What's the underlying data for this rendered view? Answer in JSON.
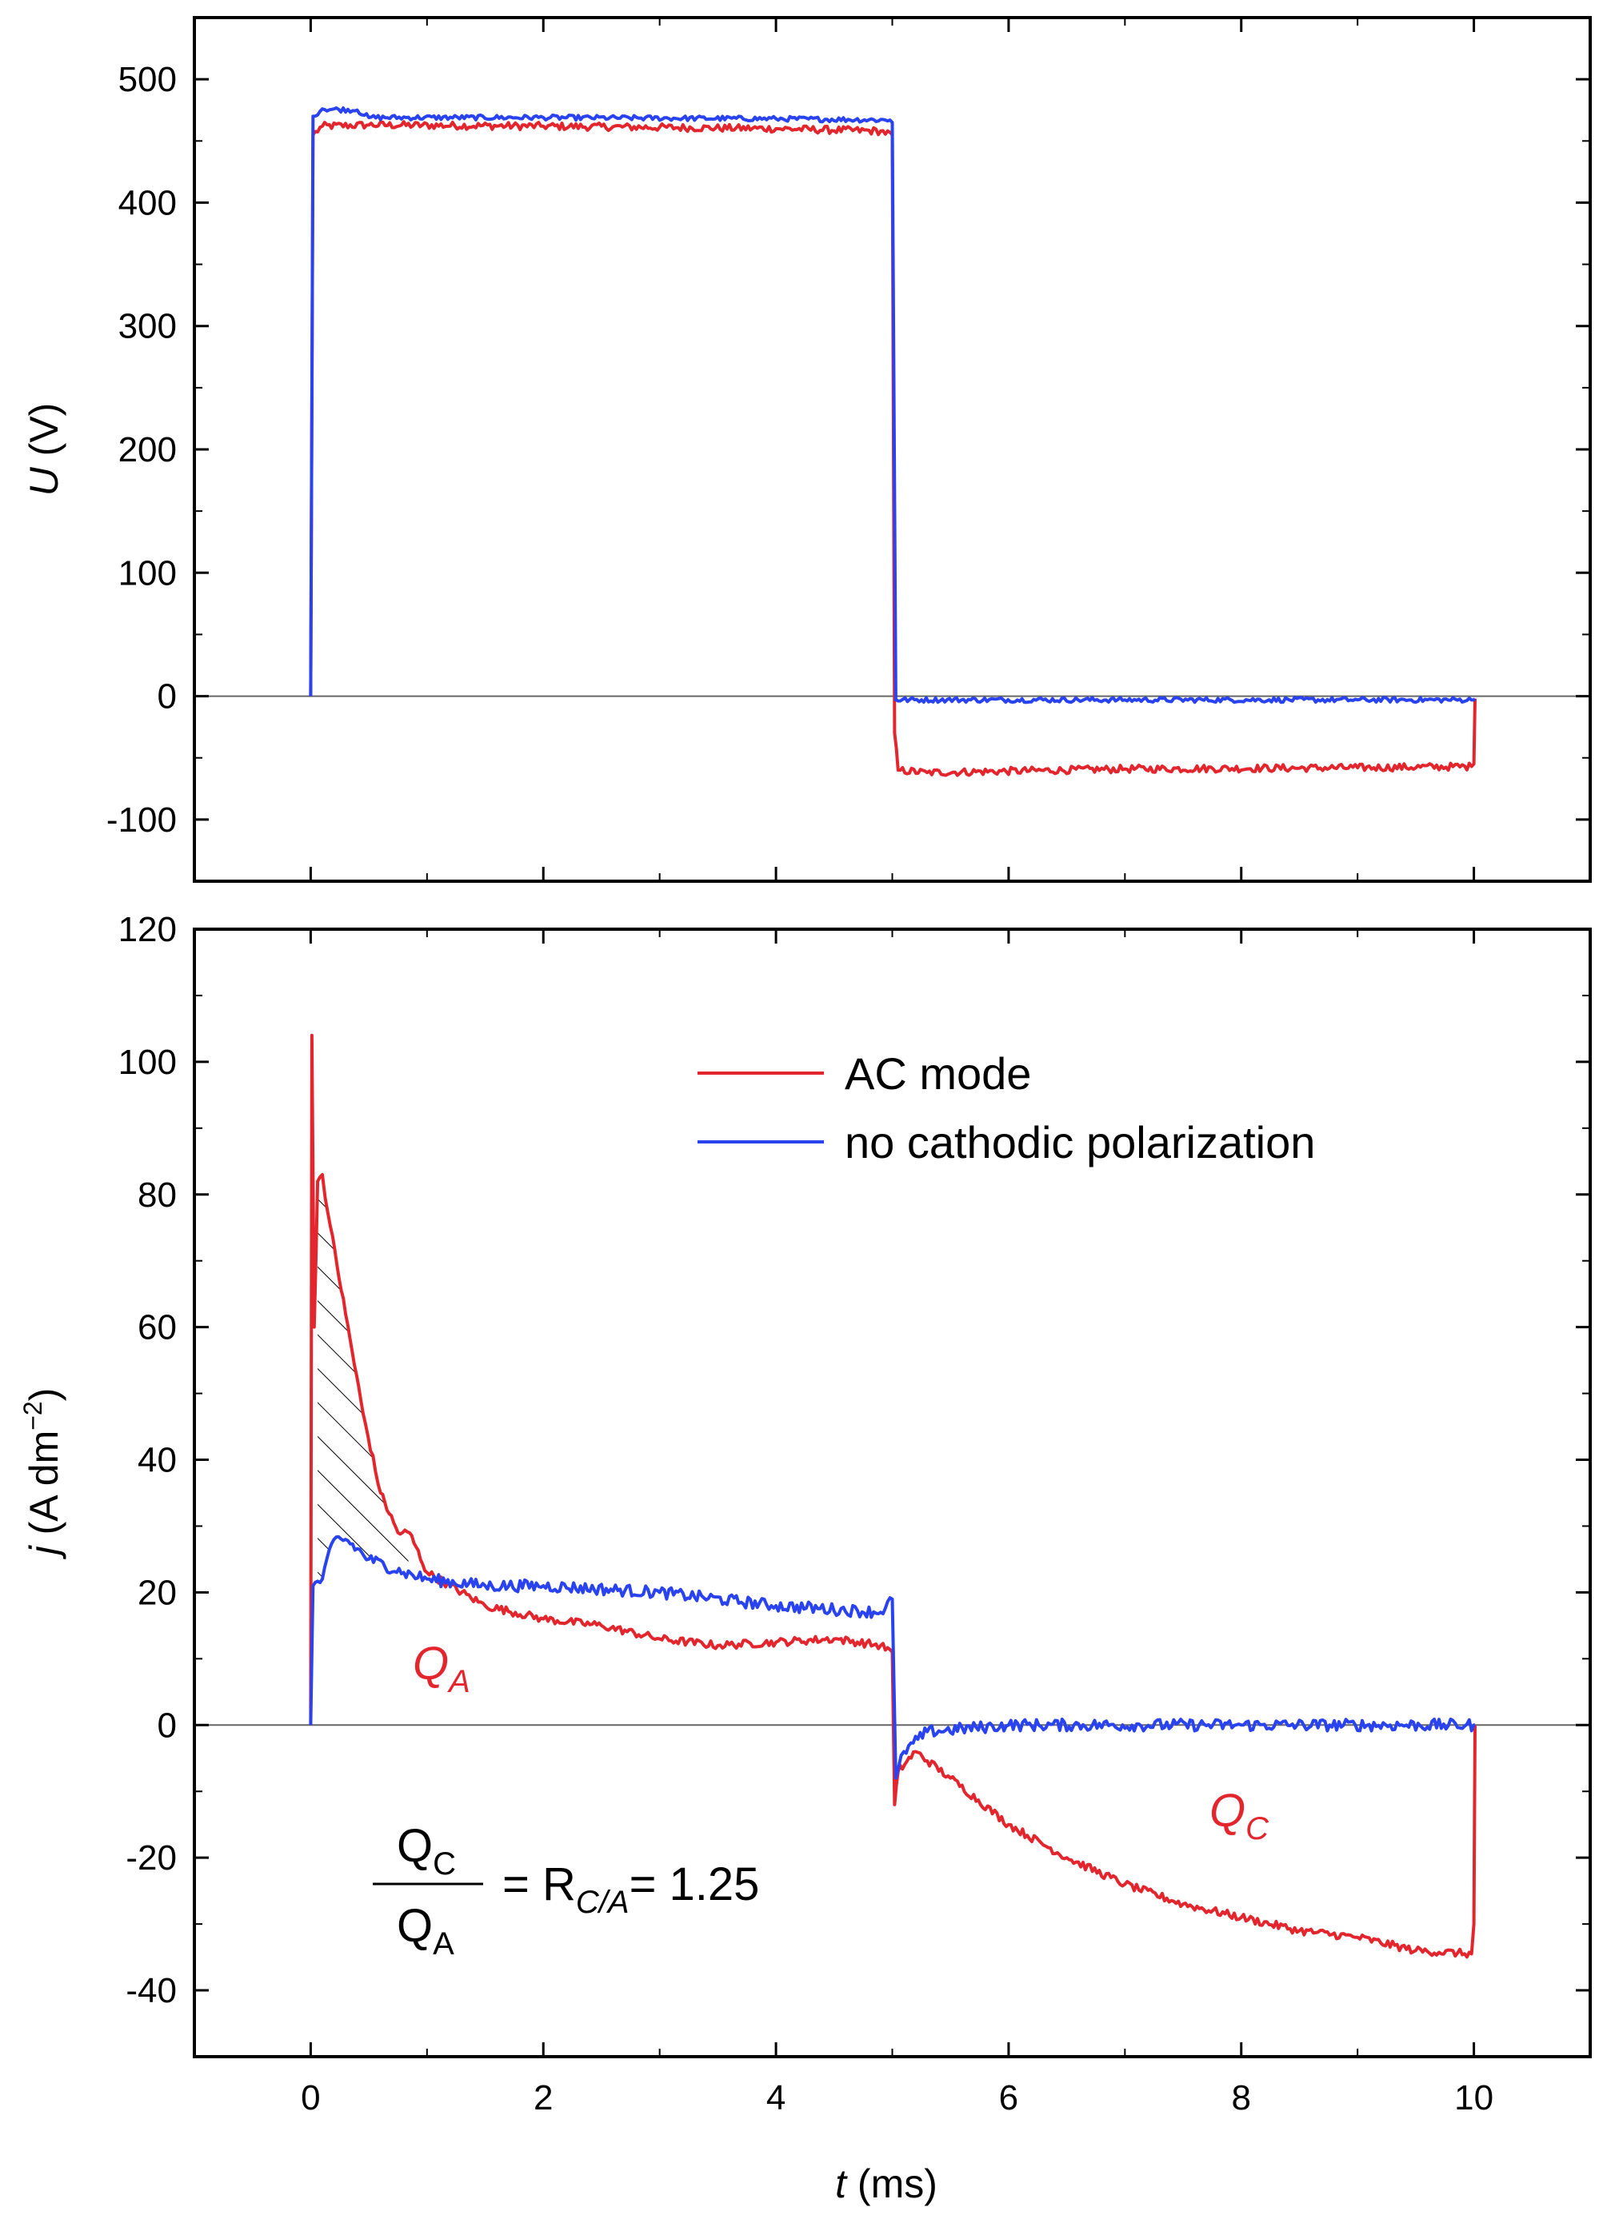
{
  "colors": {
    "ac": "#e3262d",
    "nocath": "#2a43f0",
    "axis": "#000000",
    "zero_line": "#666666"
  },
  "chart_data": [
    {
      "id": "voltage",
      "type": "line",
      "ylabel_italic": "U",
      "ylabel_rest": " (V)",
      "xlim": [
        -1,
        11
      ],
      "ylim": [
        -150,
        550
      ],
      "yticks": [
        -100,
        0,
        100,
        200,
        300,
        400,
        500
      ],
      "ytick_labels": [
        "-100",
        "0",
        "100",
        "200",
        "300",
        "400",
        "500"
      ],
      "zero_line": true,
      "series": [
        {
          "name": "AC mode",
          "color": "ac",
          "noise": 3,
          "points": [
            [
              0,
              0
            ],
            [
              0.02,
              455
            ],
            [
              0.1,
              462
            ],
            [
              0.5,
              463
            ],
            [
              2,
              462
            ],
            [
              4,
              460
            ],
            [
              4.9,
              458
            ],
            [
              5.0,
              455
            ],
            [
              5.02,
              -30
            ],
            [
              5.05,
              -60
            ],
            [
              5.3,
              -62
            ],
            [
              7,
              -59
            ],
            [
              9,
              -58
            ],
            [
              9.98,
              -57
            ],
            [
              10,
              -55
            ],
            [
              10.01,
              -2
            ]
          ]
        },
        {
          "name": "no cathodic polarization",
          "color": "nocath",
          "noise": 2,
          "points": [
            [
              0,
              0
            ],
            [
              0.02,
              470
            ],
            [
              0.1,
              476
            ],
            [
              0.4,
              475
            ],
            [
              0.5,
              469
            ],
            [
              2,
              469
            ],
            [
              4,
              468
            ],
            [
              4.98,
              467
            ],
            [
              5.0,
              465
            ],
            [
              5.03,
              -3
            ],
            [
              7,
              -3
            ],
            [
              9,
              -3
            ],
            [
              10,
              -3
            ],
            [
              10.01,
              -2
            ]
          ]
        }
      ]
    },
    {
      "id": "current_density",
      "type": "line",
      "ylabel_italic": "j",
      "ylabel_rest": " (A dm",
      "ylabel_sup": "−2",
      "ylabel_end": ")",
      "xlabel_italic": "t",
      "xlabel_rest": " (ms)",
      "xlim": [
        -1,
        11
      ],
      "ylim": [
        -50,
        120
      ],
      "xticks": [
        0,
        2,
        4,
        6,
        8,
        10
      ],
      "xtick_labels": [
        "0",
        "2",
        "4",
        "6",
        "8",
        "10"
      ],
      "yticks": [
        -40,
        -20,
        0,
        20,
        40,
        60,
        80,
        100,
        120
      ],
      "ytick_labels": [
        "-40",
        "-20",
        "0",
        "20",
        "40",
        "60",
        "80",
        "100",
        "120"
      ],
      "zero_line": true,
      "legend": [
        {
          "label": "AC mode",
          "color": "ac"
        },
        {
          "label": "no cathodic polarization",
          "color": "nocath"
        }
      ],
      "annotations": {
        "qa_main": "Q",
        "qa_sub": "A",
        "qc_main": "Q",
        "qc_sub": "C"
      },
      "formula": {
        "num_main": "Q",
        "num_sub": "C",
        "den_main": "Q",
        "den_sub": "A",
        "eq_text": "= R",
        "r_sub": "C/A",
        "value_text": "= 1.25"
      },
      "series": [
        {
          "name": "AC mode",
          "color": "ac",
          "noise": 0.6,
          "points": [
            [
              0,
              0
            ],
            [
              0.01,
              104
            ],
            [
              0.03,
              60
            ],
            [
              0.06,
              82
            ],
            [
              0.1,
              83
            ],
            [
              0.15,
              77
            ],
            [
              0.3,
              62
            ],
            [
              0.45,
              47
            ],
            [
              0.6,
              35
            ],
            [
              0.75,
              29
            ],
            [
              0.85,
              29
            ],
            [
              1.0,
              23
            ],
            [
              1.5,
              18
            ],
            [
              2,
              16
            ],
            [
              2.5,
              15
            ],
            [
              3,
              13
            ],
            [
              3.5,
              12
            ],
            [
              4,
              12.5
            ],
            [
              4.5,
              13
            ],
            [
              4.9,
              12
            ],
            [
              5.0,
              11
            ],
            [
              5.02,
              -12
            ],
            [
              5.05,
              -7
            ],
            [
              5.2,
              -4
            ],
            [
              5.5,
              -8
            ],
            [
              6,
              -15
            ],
            [
              6.5,
              -20
            ],
            [
              7,
              -24
            ],
            [
              7.5,
              -27
            ],
            [
              8,
              -29
            ],
            [
              8.5,
              -31
            ],
            [
              9,
              -32
            ],
            [
              9.5,
              -34
            ],
            [
              9.98,
              -34.5
            ],
            [
              10,
              -30
            ],
            [
              10.01,
              0
            ]
          ]
        },
        {
          "name": "no cathodic polarization",
          "color": "nocath",
          "noise": 0.9,
          "points": [
            [
              0,
              0
            ],
            [
              0.02,
              21
            ],
            [
              0.1,
              22
            ],
            [
              0.2,
              28
            ],
            [
              0.3,
              28
            ],
            [
              0.5,
              25
            ],
            [
              0.8,
              23
            ],
            [
              1,
              22
            ],
            [
              1.5,
              21
            ],
            [
              2,
              21
            ],
            [
              3,
              20
            ],
            [
              4,
              18
            ],
            [
              4.9,
              17
            ],
            [
              5.0,
              19
            ],
            [
              5.03,
              -8
            ],
            [
              5.1,
              -4
            ],
            [
              5.3,
              -1
            ],
            [
              6,
              0
            ],
            [
              8,
              0
            ],
            [
              10,
              0
            ],
            [
              10.01,
              0
            ]
          ]
        }
      ]
    }
  ]
}
